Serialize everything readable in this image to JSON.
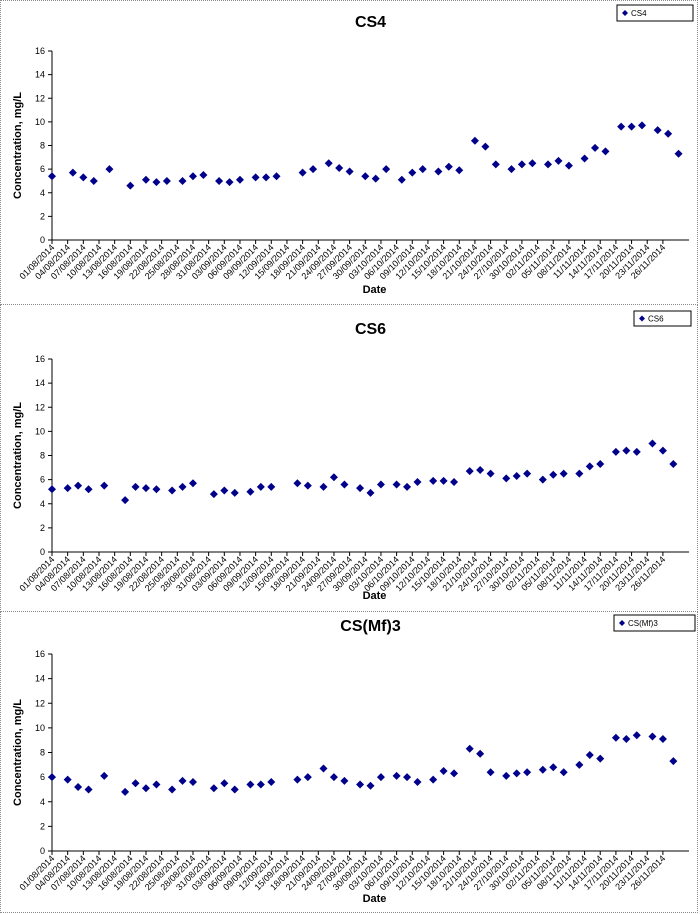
{
  "chart_data": [
    {
      "type": "scatter",
      "title": "CS4",
      "xlabel": "Date",
      "ylabel": "Concentration, mg/L",
      "ylim": [
        0,
        16
      ],
      "yticks": [
        "0",
        "2",
        "4",
        "6",
        "8",
        "10",
        "12",
        "14",
        "16"
      ],
      "xlim": [
        "01/08/2014",
        "01/12/2014"
      ],
      "xticks": [
        "01/08/2014",
        "04/08/2014",
        "07/08/2014",
        "10/08/2014",
        "13/08/2014",
        "16/08/2014",
        "19/08/2014",
        "22/08/2014",
        "25/08/2014",
        "28/08/2014",
        "31/08/2014",
        "03/09/2014",
        "06/09/2014",
        "09/09/2014",
        "12/09/2014",
        "15/09/2014",
        "18/09/2014",
        "21/09/2014",
        "24/09/2014",
        "27/09/2014",
        "30/09/2014",
        "03/10/2014",
        "06/10/2014",
        "09/10/2014",
        "12/10/2014",
        "15/10/2014",
        "18/10/2014",
        "21/10/2014",
        "24/10/2014",
        "27/10/2014",
        "30/10/2014",
        "02/11/2014",
        "05/11/2014",
        "08/11/2014",
        "11/11/2014",
        "14/11/2014",
        "17/11/2014",
        "20/11/2014",
        "23/11/2014",
        "26/11/2014"
      ],
      "grid": false,
      "legend_position": "top-right",
      "marker_color": "#00008b",
      "series": [
        {
          "name": "CS4",
          "points": [
            [
              "01/08/2014",
              5.4
            ],
            [
              "05/08/2014",
              5.7
            ],
            [
              "07/08/2014",
              5.3
            ],
            [
              "09/08/2014",
              5.0
            ],
            [
              "12/08/2014",
              6.0
            ],
            [
              "16/08/2014",
              4.6
            ],
            [
              "19/08/2014",
              5.1
            ],
            [
              "21/08/2014",
              4.9
            ],
            [
              "23/08/2014",
              5.0
            ],
            [
              "26/08/2014",
              5.0
            ],
            [
              "28/08/2014",
              5.4
            ],
            [
              "30/08/2014",
              5.5
            ],
            [
              "02/09/2014",
              5.0
            ],
            [
              "04/09/2014",
              4.9
            ],
            [
              "06/09/2014",
              5.1
            ],
            [
              "09/09/2014",
              5.3
            ],
            [
              "11/09/2014",
              5.3
            ],
            [
              "13/09/2014",
              5.4
            ],
            [
              "18/09/2014",
              5.7
            ],
            [
              "20/09/2014",
              6.0
            ],
            [
              "23/09/2014",
              6.5
            ],
            [
              "25/09/2014",
              6.1
            ],
            [
              "27/09/2014",
              5.8
            ],
            [
              "30/09/2014",
              5.4
            ],
            [
              "02/10/2014",
              5.2
            ],
            [
              "04/10/2014",
              6.0
            ],
            [
              "07/10/2014",
              5.1
            ],
            [
              "09/10/2014",
              5.7
            ],
            [
              "11/10/2014",
              6.0
            ],
            [
              "14/10/2014",
              5.8
            ],
            [
              "16/10/2014",
              6.2
            ],
            [
              "18/10/2014",
              5.9
            ],
            [
              "21/10/2014",
              8.4
            ],
            [
              "23/10/2014",
              7.9
            ],
            [
              "25/10/2014",
              6.4
            ],
            [
              "28/10/2014",
              6.0
            ],
            [
              "30/10/2014",
              6.4
            ],
            [
              "01/11/2014",
              6.5
            ],
            [
              "04/11/2014",
              6.4
            ],
            [
              "06/11/2014",
              6.7
            ],
            [
              "08/11/2014",
              6.3
            ],
            [
              "11/11/2014",
              6.9
            ],
            [
              "13/11/2014",
              7.8
            ],
            [
              "15/11/2014",
              7.5
            ],
            [
              "18/11/2014",
              9.6
            ],
            [
              "20/11/2014",
              9.6
            ],
            [
              "22/11/2014",
              9.7
            ],
            [
              "25/11/2014",
              9.3
            ],
            [
              "27/11/2014",
              9.0
            ],
            [
              "29/11/2014",
              7.3
            ]
          ]
        }
      ]
    },
    {
      "type": "scatter",
      "title": "CS6",
      "xlabel": "Date",
      "ylabel": "Concentration, mg/L",
      "ylim": [
        0,
        16
      ],
      "yticks": [
        "0",
        "2",
        "4",
        "6",
        "8",
        "10",
        "12",
        "14",
        "16"
      ],
      "xlim": [
        "01/08/2014",
        "01/12/2014"
      ],
      "xticks": [
        "01/08/2014",
        "04/08/2014",
        "07/08/2014",
        "10/08/2014",
        "13/08/2014",
        "16/08/2014",
        "19/08/2014",
        "22/08/2014",
        "25/08/2014",
        "28/08/2014",
        "31/08/2014",
        "03/09/2014",
        "06/09/2014",
        "09/09/2014",
        "12/09/2014",
        "15/09/2014",
        "18/09/2014",
        "21/09/2014",
        "24/09/2014",
        "27/09/2014",
        "30/09/2014",
        "03/10/2014",
        "06/10/2014",
        "09/10/2014",
        "12/10/2014",
        "15/10/2014",
        "18/10/2014",
        "21/10/2014",
        "24/10/2014",
        "27/10/2014",
        "30/10/2014",
        "02/11/2014",
        "05/11/2014",
        "08/11/2014",
        "11/11/2014",
        "14/11/2014",
        "17/11/2014",
        "20/11/2014",
        "23/11/2014",
        "26/11/2014"
      ],
      "grid": false,
      "legend_position": "top-right",
      "marker_color": "#00008b",
      "series": [
        {
          "name": "CS6",
          "points": [
            [
              "01/08/2014",
              5.2
            ],
            [
              "04/08/2014",
              5.3
            ],
            [
              "06/08/2014",
              5.5
            ],
            [
              "08/08/2014",
              5.2
            ],
            [
              "11/08/2014",
              5.5
            ],
            [
              "15/08/2014",
              4.3
            ],
            [
              "17/08/2014",
              5.4
            ],
            [
              "19/08/2014",
              5.3
            ],
            [
              "21/08/2014",
              5.2
            ],
            [
              "24/08/2014",
              5.1
            ],
            [
              "26/08/2014",
              5.4
            ],
            [
              "28/08/2014",
              5.7
            ],
            [
              "01/09/2014",
              4.8
            ],
            [
              "03/09/2014",
              5.1
            ],
            [
              "05/09/2014",
              4.9
            ],
            [
              "08/09/2014",
              5.0
            ],
            [
              "10/09/2014",
              5.4
            ],
            [
              "12/09/2014",
              5.4
            ],
            [
              "17/09/2014",
              5.7
            ],
            [
              "19/09/2014",
              5.5
            ],
            [
              "22/09/2014",
              5.4
            ],
            [
              "24/09/2014",
              6.2
            ],
            [
              "26/09/2014",
              5.6
            ],
            [
              "29/09/2014",
              5.3
            ],
            [
              "01/10/2014",
              4.9
            ],
            [
              "03/10/2014",
              5.6
            ],
            [
              "06/10/2014",
              5.6
            ],
            [
              "08/10/2014",
              5.4
            ],
            [
              "10/10/2014",
              5.8
            ],
            [
              "13/10/2014",
              5.9
            ],
            [
              "15/10/2014",
              5.9
            ],
            [
              "17/10/2014",
              5.8
            ],
            [
              "20/10/2014",
              6.7
            ],
            [
              "22/10/2014",
              6.8
            ],
            [
              "24/10/2014",
              6.5
            ],
            [
              "27/10/2014",
              6.1
            ],
            [
              "29/10/2014",
              6.3
            ],
            [
              "31/10/2014",
              6.5
            ],
            [
              "03/11/2014",
              6.0
            ],
            [
              "05/11/2014",
              6.4
            ],
            [
              "07/11/2014",
              6.5
            ],
            [
              "10/11/2014",
              6.5
            ],
            [
              "12/11/2014",
              7.1
            ],
            [
              "14/11/2014",
              7.3
            ],
            [
              "17/11/2014",
              8.3
            ],
            [
              "19/11/2014",
              8.4
            ],
            [
              "21/11/2014",
              8.3
            ],
            [
              "24/11/2014",
              9.0
            ],
            [
              "26/11/2014",
              8.4
            ],
            [
              "28/11/2014",
              7.3
            ]
          ]
        }
      ]
    },
    {
      "type": "scatter",
      "title": "CS(Mf)3",
      "xlabel": "Date",
      "ylabel": "Concentration, mg/L",
      "ylim": [
        0,
        16
      ],
      "yticks": [
        "0",
        "2",
        "4",
        "6",
        "8",
        "10",
        "12",
        "14",
        "16"
      ],
      "xlim": [
        "01/08/2014",
        "01/12/2014"
      ],
      "xticks": [
        "01/08/2014",
        "04/08/2014",
        "07/08/2014",
        "10/08/2014",
        "13/08/2014",
        "16/08/2014",
        "19/08/2014",
        "22/08/2014",
        "25/08/2014",
        "28/08/2014",
        "31/08/2014",
        "03/09/2014",
        "06/09/2014",
        "09/09/2014",
        "12/09/2014",
        "15/09/2014",
        "18/09/2014",
        "21/09/2014",
        "24/09/2014",
        "27/09/2014",
        "30/09/2014",
        "03/10/2014",
        "06/10/2014",
        "09/10/2014",
        "12/10/2014",
        "15/10/2014",
        "18/10/2014",
        "21/10/2014",
        "24/10/2014",
        "27/10/2014",
        "30/10/2014",
        "02/11/2014",
        "05/11/2014",
        "08/11/2014",
        "11/11/2014",
        "14/11/2014",
        "17/11/2014",
        "20/11/2014",
        "23/11/2014",
        "26/11/2014"
      ],
      "grid": false,
      "legend_position": "top-right",
      "marker_color": "#00008b",
      "series": [
        {
          "name": "CS(Mf)3",
          "points": [
            [
              "01/08/2014",
              6.0
            ],
            [
              "04/08/2014",
              5.8
            ],
            [
              "06/08/2014",
              5.2
            ],
            [
              "08/08/2014",
              5.0
            ],
            [
              "11/08/2014",
              6.1
            ],
            [
              "15/08/2014",
              4.8
            ],
            [
              "17/08/2014",
              5.5
            ],
            [
              "19/08/2014",
              5.1
            ],
            [
              "21/08/2014",
              5.4
            ],
            [
              "24/08/2014",
              5.0
            ],
            [
              "26/08/2014",
              5.7
            ],
            [
              "28/08/2014",
              5.6
            ],
            [
              "01/09/2014",
              5.1
            ],
            [
              "03/09/2014",
              5.5
            ],
            [
              "05/09/2014",
              5.0
            ],
            [
              "08/09/2014",
              5.4
            ],
            [
              "10/09/2014",
              5.4
            ],
            [
              "12/09/2014",
              5.6
            ],
            [
              "17/09/2014",
              5.8
            ],
            [
              "19/09/2014",
              6.0
            ],
            [
              "22/09/2014",
              6.7
            ],
            [
              "24/09/2014",
              6.0
            ],
            [
              "26/09/2014",
              5.7
            ],
            [
              "29/09/2014",
              5.4
            ],
            [
              "01/10/2014",
              5.3
            ],
            [
              "03/10/2014",
              6.0
            ],
            [
              "06/10/2014",
              6.1
            ],
            [
              "08/10/2014",
              6.0
            ],
            [
              "10/10/2014",
              5.6
            ],
            [
              "13/10/2014",
              5.8
            ],
            [
              "15/10/2014",
              6.5
            ],
            [
              "17/10/2014",
              6.3
            ],
            [
              "20/10/2014",
              8.3
            ],
            [
              "22/10/2014",
              7.9
            ],
            [
              "24/10/2014",
              6.4
            ],
            [
              "27/10/2014",
              6.1
            ],
            [
              "29/10/2014",
              6.3
            ],
            [
              "31/10/2014",
              6.4
            ],
            [
              "03/11/2014",
              6.6
            ],
            [
              "05/11/2014",
              6.8
            ],
            [
              "07/11/2014",
              6.4
            ],
            [
              "10/11/2014",
              7.0
            ],
            [
              "12/11/2014",
              7.8
            ],
            [
              "14/11/2014",
              7.5
            ],
            [
              "17/11/2014",
              9.2
            ],
            [
              "19/11/2014",
              9.1
            ],
            [
              "21/11/2014",
              9.4
            ],
            [
              "24/11/2014",
              9.3
            ],
            [
              "26/11/2014",
              9.1
            ],
            [
              "28/11/2014",
              7.3
            ]
          ]
        }
      ]
    }
  ]
}
